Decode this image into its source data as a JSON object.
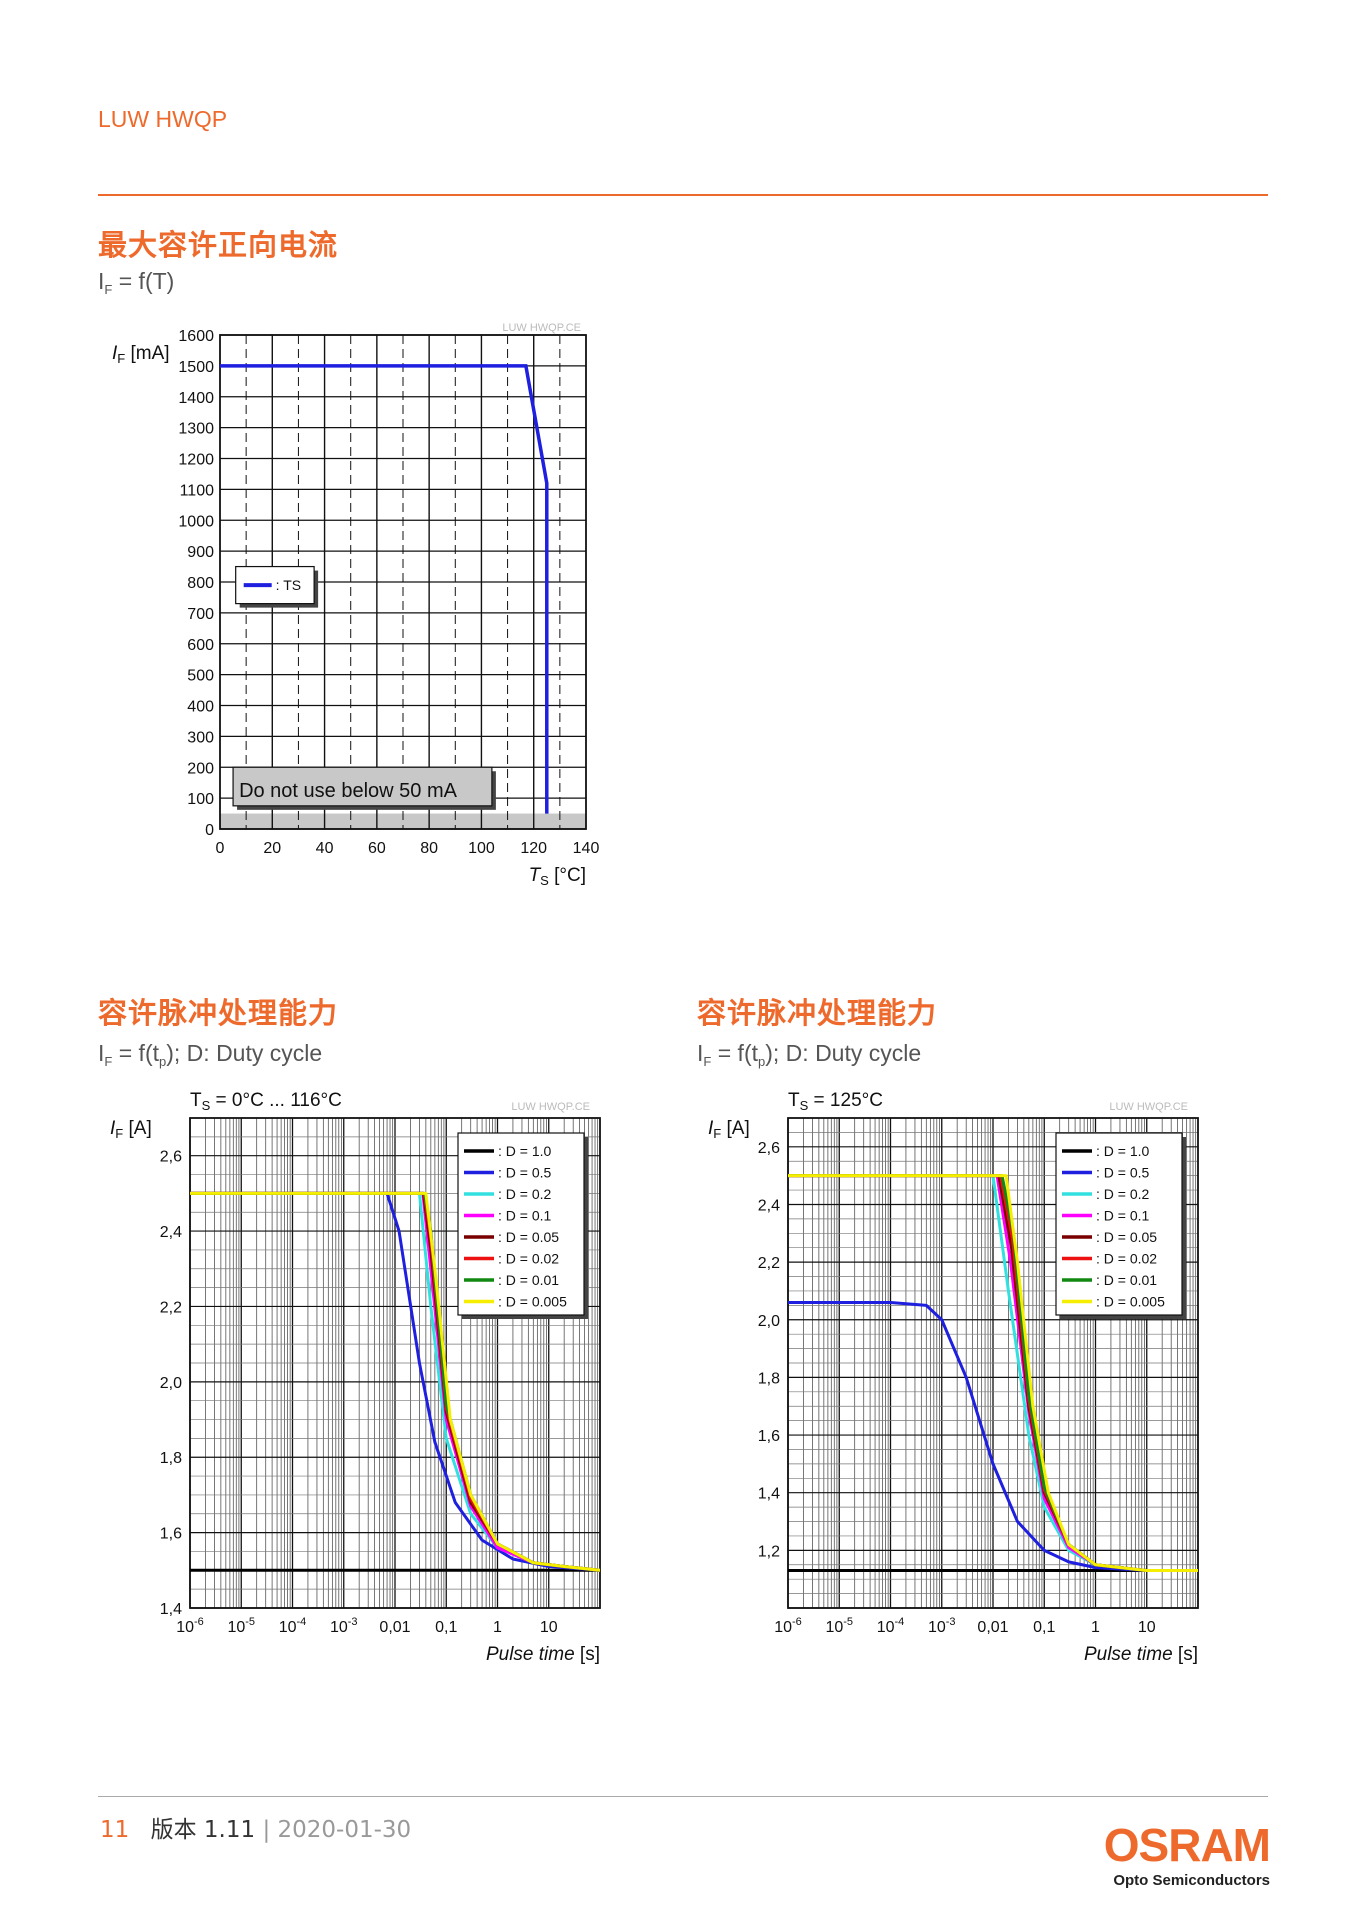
{
  "header": {
    "title": "LUW HWQP"
  },
  "section1": {
    "title": "最大容许正向电流",
    "sub_i": "I",
    "sub_sub": "F",
    "sub_rest": " = f(T)"
  },
  "section2": {
    "title": "容许脉冲处理能力",
    "sub_i": "I",
    "sub_sub": "F",
    "sub_mid": " = f(t",
    "sub_sub2": "p",
    "sub_rest": "); D: Duty cycle"
  },
  "section3": {
    "title": "容许脉冲处理能力",
    "sub_i": "I",
    "sub_sub": "F",
    "sub_mid": " = f(t",
    "sub_sub2": "p",
    "sub_rest": "); D: Duty cycle"
  },
  "footer": {
    "page": "11",
    "version": "版本 1.11",
    "sep": "|",
    "date": "2020-01-30"
  },
  "logo": {
    "name": "OSRAM",
    "sub": "Opto Semiconductors"
  },
  "chart_data": [
    {
      "type": "line",
      "watermark": "LUW HWQP.CE",
      "ylabel": "IF [mA]",
      "xlabel": "TS [°C]",
      "xlim": [
        0,
        140
      ],
      "ylim": [
        0,
        1600
      ],
      "xticks": [
        0,
        20,
        40,
        60,
        80,
        100,
        120,
        140
      ],
      "yticks": [
        0,
        100,
        200,
        300,
        400,
        500,
        600,
        700,
        800,
        900,
        1000,
        1100,
        1200,
        1300,
        1400,
        1500,
        1600
      ],
      "grid": true,
      "legend": {
        "placement": "left-middle",
        "entries": [
          ": TS"
        ]
      },
      "annotation": "Do not use below 50 mA",
      "series": [
        {
          "name": "TS",
          "color": "#1f1fe0",
          "x": [
            0,
            117,
            125,
            125
          ],
          "y": [
            1500,
            1500,
            1120,
            50
          ]
        }
      ]
    },
    {
      "type": "line",
      "watermark": "LUW HWQP.CE",
      "title": "TS = 0°C ... 116°C",
      "ylabel": "IF [A]",
      "xlabel": "Pulse time [s]",
      "xscale": "log",
      "xlim": [
        1e-06,
        100
      ],
      "ylim": [
        1.4,
        2.7
      ],
      "xticks": [
        "10-6",
        "10-5",
        "10-4",
        "10-3",
        "0,01",
        "0,1",
        "1",
        "10"
      ],
      "yticks": [
        "1,4",
        "1,6",
        "1,8",
        "2,0",
        "2,2",
        "2,4",
        "2,6"
      ],
      "grid": true,
      "legend": {
        "placement": "top-right"
      },
      "series": [
        {
          "name": ": D = 1.0",
          "color": "#000000",
          "x": [
            1e-06,
            100
          ],
          "y": [
            1.5,
            1.5
          ]
        },
        {
          "name": ": D = 0.5",
          "color": "#1f1fe0",
          "x": [
            1e-06,
            0.007,
            0.012,
            0.03,
            0.06,
            0.15,
            0.5,
            2,
            10,
            100
          ],
          "y": [
            2.5,
            2.5,
            2.4,
            2.05,
            1.84,
            1.68,
            1.58,
            1.53,
            1.51,
            1.5
          ]
        },
        {
          "name": ": D = 0.2",
          "color": "#33e0e0",
          "x": [
            1e-06,
            0.03,
            0.05,
            0.1,
            0.3,
            1,
            5,
            20,
            100
          ],
          "y": [
            2.5,
            2.5,
            2.2,
            1.85,
            1.65,
            1.56,
            1.52,
            1.51,
            1.5
          ]
        },
        {
          "name": ": D = 0.1",
          "color": "#ff00ff",
          "x": [
            1e-06,
            0.035,
            0.05,
            0.1,
            0.3,
            1,
            5,
            20,
            100
          ],
          "y": [
            2.5,
            2.5,
            2.3,
            1.9,
            1.67,
            1.56,
            1.52,
            1.51,
            1.5
          ]
        },
        {
          "name": ": D = 0.05",
          "color": "#7a0000",
          "x": [
            1e-06,
            0.036,
            0.05,
            0.1,
            0.3,
            1,
            5,
            20,
            100
          ],
          "y": [
            2.5,
            2.5,
            2.35,
            1.92,
            1.68,
            1.57,
            1.52,
            1.51,
            1.5
          ]
        },
        {
          "name": ": D = 0.02",
          "color": "#ee1111",
          "x": [
            1e-06,
            0.037,
            0.05,
            0.1,
            0.3,
            1,
            5,
            20,
            100
          ],
          "y": [
            2.5,
            2.5,
            2.38,
            1.93,
            1.69,
            1.57,
            1.52,
            1.51,
            1.5
          ]
        },
        {
          "name": ": D = 0.01",
          "color": "#118811",
          "x": [
            1e-06,
            0.038,
            0.05,
            0.1,
            0.3,
            1,
            5,
            20,
            100
          ],
          "y": [
            2.5,
            2.5,
            2.4,
            1.94,
            1.7,
            1.57,
            1.52,
            1.51,
            1.5
          ]
        },
        {
          "name": ": D = 0.005",
          "color": "#f5ee00",
          "x": [
            1e-06,
            0.04,
            0.06,
            0.12,
            0.3,
            1,
            5,
            20,
            100
          ],
          "y": [
            2.5,
            2.5,
            2.3,
            1.9,
            1.7,
            1.57,
            1.52,
            1.51,
            1.5
          ]
        }
      ]
    },
    {
      "type": "line",
      "watermark": "LUW HWQP.CE",
      "title": "TS = 125°C",
      "ylabel": "IF [A]",
      "xlabel": "Pulse time [s]",
      "xscale": "log",
      "xlim": [
        1e-06,
        100
      ],
      "ylim": [
        1.0,
        2.7
      ],
      "xticks": [
        "10-6",
        "10-5",
        "10-4",
        "10-3",
        "0,01",
        "0,1",
        "1",
        "10"
      ],
      "yticks": [
        "1,2",
        "1,4",
        "1,6",
        "1,8",
        "2,0",
        "2,2",
        "2,4",
        "2,6"
      ],
      "grid": true,
      "legend": {
        "placement": "top-right"
      },
      "series": [
        {
          "name": ": D = 1.0",
          "color": "#000000",
          "x": [
            1e-06,
            100
          ],
          "y": [
            1.13,
            1.13
          ]
        },
        {
          "name": ": D = 0.5",
          "color": "#1f1fe0",
          "x": [
            1e-06,
            0.0001,
            0.0005,
            0.001,
            0.003,
            0.01,
            0.03,
            0.1,
            0.3,
            1,
            10,
            100
          ],
          "y": [
            2.06,
            2.06,
            2.05,
            2.0,
            1.8,
            1.5,
            1.3,
            1.2,
            1.16,
            1.14,
            1.13,
            1.13
          ]
        },
        {
          "name": ": D = 0.2",
          "color": "#33e0e0",
          "x": [
            1e-06,
            0.01,
            0.02,
            0.05,
            0.1,
            0.3,
            1,
            10,
            100
          ],
          "y": [
            2.5,
            2.5,
            2.1,
            1.6,
            1.35,
            1.2,
            1.15,
            1.13,
            1.13
          ]
        },
        {
          "name": ": D = 0.1",
          "color": "#ff00ff",
          "x": [
            1e-06,
            0.012,
            0.022,
            0.05,
            0.1,
            0.3,
            1,
            10,
            100
          ],
          "y": [
            2.5,
            2.5,
            2.2,
            1.68,
            1.38,
            1.21,
            1.15,
            1.13,
            1.13
          ]
        },
        {
          "name": ": D = 0.05",
          "color": "#7a0000",
          "x": [
            1e-06,
            0.013,
            0.023,
            0.05,
            0.1,
            0.3,
            1,
            10,
            100
          ],
          "y": [
            2.5,
            2.5,
            2.25,
            1.7,
            1.4,
            1.22,
            1.15,
            1.13,
            1.13
          ]
        },
        {
          "name": ": D = 0.02",
          "color": "#ee1111",
          "x": [
            1e-06,
            0.014,
            0.024,
            0.05,
            0.1,
            0.3,
            1,
            10,
            100
          ],
          "y": [
            2.5,
            2.5,
            2.28,
            1.72,
            1.41,
            1.22,
            1.15,
            1.13,
            1.13
          ]
        },
        {
          "name": ": D = 0.01",
          "color": "#118811",
          "x": [
            1e-06,
            0.015,
            0.025,
            0.05,
            0.1,
            0.3,
            1,
            10,
            100
          ],
          "y": [
            2.5,
            2.5,
            2.3,
            1.74,
            1.42,
            1.22,
            1.15,
            1.13,
            1.13
          ]
        },
        {
          "name": ": D = 0.005",
          "color": "#f5ee00",
          "x": [
            1e-06,
            0.018,
            0.03,
            0.06,
            0.12,
            0.3,
            1,
            10,
            100
          ],
          "y": [
            2.5,
            2.5,
            2.2,
            1.7,
            1.4,
            1.22,
            1.15,
            1.13,
            1.13
          ]
        }
      ]
    }
  ]
}
